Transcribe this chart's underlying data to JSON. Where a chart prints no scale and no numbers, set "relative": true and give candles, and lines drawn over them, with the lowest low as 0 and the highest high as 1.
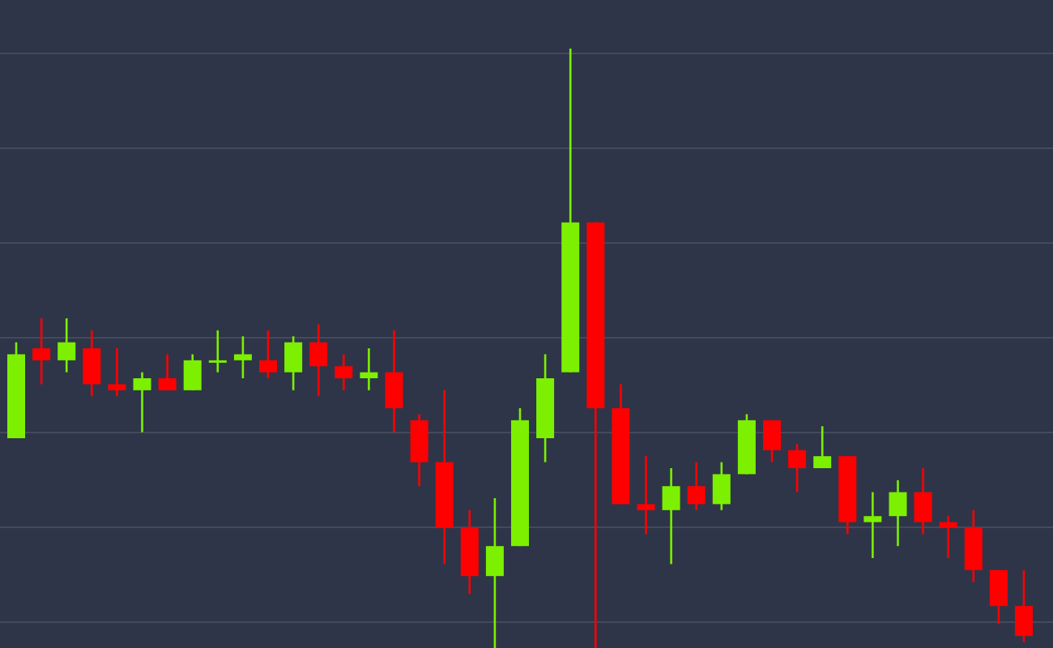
{
  "chart_data": {
    "type": "candlestick",
    "relative": true,
    "grid": true,
    "tick_labels": false,
    "categories": [
      null,
      null,
      null,
      null,
      null,
      null,
      null,
      null,
      null,
      null,
      null,
      null,
      null,
      null,
      null,
      null,
      null,
      null,
      null,
      null,
      null,
      null,
      null,
      null,
      null,
      null,
      null,
      null,
      null,
      null,
      null,
      null,
      null,
      null,
      null,
      null,
      null,
      null,
      null,
      null,
      null
    ],
    "ohlc": [
      [
        0.35,
        0.51,
        0.35,
        0.49
      ],
      [
        0.5,
        0.55,
        0.44,
        0.48
      ],
      [
        0.48,
        0.55,
        0.46,
        0.51
      ],
      [
        0.5,
        0.53,
        0.42,
        0.44
      ],
      [
        0.44,
        0.5,
        0.42,
        0.43
      ],
      [
        0.43,
        0.46,
        0.36,
        0.45
      ],
      [
        0.45,
        0.49,
        0.43,
        0.43
      ],
      [
        0.43,
        0.49,
        0.43,
        0.48
      ],
      [
        0.48,
        0.53,
        0.46,
        0.48
      ],
      [
        0.48,
        0.52,
        0.45,
        0.49
      ],
      [
        0.48,
        0.53,
        0.45,
        0.46
      ],
      [
        0.46,
        0.52,
        0.43,
        0.51
      ],
      [
        0.51,
        0.54,
        0.42,
        0.47
      ],
      [
        0.47,
        0.49,
        0.43,
        0.45
      ],
      [
        0.45,
        0.5,
        0.43,
        0.46
      ],
      [
        0.46,
        0.53,
        0.36,
        0.4
      ],
      [
        0.38,
        0.39,
        0.27,
        0.31
      ],
      [
        0.31,
        0.43,
        0.14,
        0.2
      ],
      [
        0.2,
        0.23,
        0.09,
        0.12
      ],
      [
        0.12,
        0.25,
        0,
        0.17
      ],
      [
        0.17,
        0.4,
        0.17,
        0.38
      ],
      [
        0.35,
        0.49,
        0.31,
        0.45
      ],
      [
        0.46,
        1,
        0.46,
        0.71
      ],
      [
        0.71,
        0.71,
        0,
        0.4
      ],
      [
        0.4,
        0.44,
        0.24,
        0.24
      ],
      [
        0.24,
        0.32,
        0.19,
        0.23
      ],
      [
        0.23,
        0.3,
        0.14,
        0.27
      ],
      [
        0.27,
        0.31,
        0.23,
        0.24
      ],
      [
        0.24,
        0.31,
        0.23,
        0.29
      ],
      [
        0.29,
        0.39,
        0.29,
        0.38
      ],
      [
        0.38,
        0.38,
        0.31,
        0.33
      ],
      [
        0.33,
        0.34,
        0.26,
        0.3
      ],
      [
        0.3,
        0.37,
        0.3,
        0.32
      ],
      [
        0.32,
        0.32,
        0.19,
        0.21
      ],
      [
        0.21,
        0.26,
        0.15,
        0.22
      ],
      [
        0.22,
        0.28,
        0.17,
        0.26
      ],
      [
        0.26,
        0.3,
        0.19,
        0.21
      ],
      [
        0.21,
        0.22,
        0.15,
        0.2
      ],
      [
        0.2,
        0.23,
        0.11,
        0.13
      ],
      [
        0.13,
        0.13,
        0.04,
        0.07
      ],
      [
        0.07,
        0.13,
        0.01,
        0.02
      ]
    ]
  }
}
